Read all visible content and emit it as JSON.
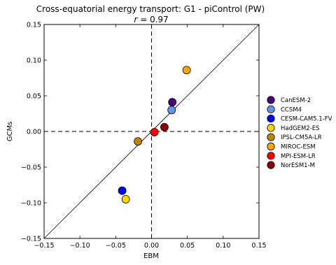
{
  "chart_data": {
    "type": "scatter",
    "title": "Cross-equatorial energy transport: G1 - piControl (PW)",
    "subtitle_symbol": "r",
    "subtitle_value": " = 0.97",
    "xlabel": "EBM",
    "ylabel": "GCMs",
    "xlim": [
      -0.15,
      0.15
    ],
    "ylim": [
      -0.15,
      0.15
    ],
    "xticks": [
      -0.15,
      -0.1,
      -0.05,
      0.0,
      0.05,
      0.1,
      0.15
    ],
    "yticks": [
      -0.15,
      -0.1,
      -0.05,
      0.0,
      0.05,
      0.1,
      0.15
    ],
    "xtick_labels": [
      "−0.15",
      "−0.10",
      "−0.05",
      "0.00",
      "0.05",
      "0.10",
      "0.15"
    ],
    "ytick_labels": [
      "−0.15",
      "−0.10",
      "−0.05",
      "0.00",
      "0.05",
      "0.10",
      "0.15"
    ],
    "grid": false,
    "legend_position": "right",
    "reference_lines": [
      "one-to-one",
      "x=0",
      "y=0"
    ],
    "series": [
      {
        "name": "CanESM-2",
        "color": "#4b0082",
        "x": 0.029,
        "y": 0.041
      },
      {
        "name": "CCSM4",
        "color": "#6495ed",
        "x": 0.028,
        "y": 0.03
      },
      {
        "name": "CESM-CAM5.1-FV",
        "color": "#0000ff",
        "x": -0.041,
        "y": -0.083
      },
      {
        "name": "HadGEM2-ES",
        "color": "#ffd700",
        "x": -0.036,
        "y": -0.095
      },
      {
        "name": "IPSL-CM5A-LR",
        "color": "#b8860b",
        "x": -0.019,
        "y": -0.014
      },
      {
        "name": "MIROC-ESM",
        "color": "#ffa500",
        "x": 0.049,
        "y": 0.086
      },
      {
        "name": "MPI-ESM-LR",
        "color": "#ff0000",
        "x": 0.004,
        "y": -0.001
      },
      {
        "name": "NorESM1-M",
        "color": "#8b0000",
        "x": 0.018,
        "y": 0.006
      }
    ]
  }
}
